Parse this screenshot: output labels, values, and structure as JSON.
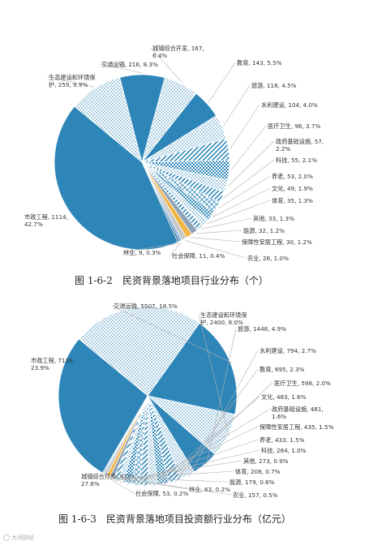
{
  "chart_data": [
    {
      "type": "pie",
      "caption": "图 1-6-2　民资背景落地项目行业分布（个）",
      "slices": [
        {
          "label": "市政工程, 1114, 42.7%",
          "value": 1114,
          "pct": 42.7,
          "color": "#2e86b8",
          "pattern": "solid"
        },
        {
          "label": "生态建设和环境保护, 259, 9.9%",
          "value": 259,
          "pct": 9.9,
          "color": "#ffffff",
          "pattern": "dots"
        },
        {
          "label": "交通运输, 216, 8.3%",
          "value": 216,
          "pct": 8.3,
          "color": "#2e86b8",
          "pattern": "solid"
        },
        {
          "label": "城镇综合开发, 167, 6.4%",
          "value": 167,
          "pct": 6.4,
          "color": "#ffffff",
          "pattern": "dots"
        },
        {
          "label": "教育, 143, 5.5%",
          "value": 143,
          "pct": 5.5,
          "color": "#2e86b8",
          "pattern": "solid"
        },
        {
          "label": "旅游, 118, 4.5%",
          "value": 118,
          "pct": 4.5,
          "color": "#ffffff",
          "pattern": "dots"
        },
        {
          "label": "水利建设, 104, 4.0%",
          "value": 104,
          "pct": 4.0,
          "color": "#ffffff",
          "pattern": "stripe"
        },
        {
          "label": "医疗卫生, 96, 3.7%",
          "value": 96,
          "pct": 3.7,
          "color": "#ffffff",
          "pattern": "check"
        },
        {
          "label": "政府基础设施, 57, 2.2%",
          "value": 57,
          "pct": 2.2,
          "color": "#ffffff",
          "pattern": "dots"
        },
        {
          "label": "科技, 55, 2.1%",
          "value": 55,
          "pct": 2.1,
          "color": "#ffffff",
          "pattern": "stripe"
        },
        {
          "label": "养老, 53, 2.0%",
          "value": 53,
          "pct": 2.0,
          "color": "#ffffff",
          "pattern": "diamond"
        },
        {
          "label": "文化, 49, 1.9%",
          "value": 49,
          "pct": 1.9,
          "color": "#ffffff",
          "pattern": "check"
        },
        {
          "label": "体育, 35, 1.3%",
          "value": 35,
          "pct": 1.3,
          "color": "#ffffff",
          "pattern": "dots"
        },
        {
          "label": "其他, 33, 1.3%",
          "value": 33,
          "pct": 1.3,
          "color": "#ffffff",
          "pattern": "stripe"
        },
        {
          "label": "能源, 32, 1.2%",
          "value": 32,
          "pct": 1.2,
          "color": "#8fa3b5",
          "pattern": "solid"
        },
        {
          "label": "保障性安居工程, 30, 1.2%",
          "value": 30,
          "pct": 1.2,
          "color": "#f2b441",
          "pattern": "solid"
        },
        {
          "label": "农业, 26, 1.0%",
          "value": 26,
          "pct": 1.0,
          "color": "#c7c7c7",
          "pattern": "solid"
        },
        {
          "label": "社会保障, 11, 0.4%",
          "value": 11,
          "pct": 0.4,
          "color": "#6fa8dc",
          "pattern": "solid"
        },
        {
          "label": "林业, 9, 0.3%",
          "value": 9,
          "pct": 0.3,
          "color": "#1f5f8b",
          "pattern": "solid"
        }
      ]
    },
    {
      "type": "pie",
      "caption": "图 1-6-3　民资背景落地项目投资额行业分布（亿元）",
      "slices": [
        {
          "label": "城镇综合开发, 8222, 27.6%",
          "value": 8222,
          "pct": 27.6,
          "color": "#2e86b8",
          "pattern": "solid"
        },
        {
          "label": "市政工程, 7126, 23.9%",
          "value": 7126,
          "pct": 23.9,
          "color": "#ffffff",
          "pattern": "dots"
        },
        {
          "label": "交通运输, 5507, 18.5%",
          "value": 5507,
          "pct": 18.5,
          "color": "#2e86b8",
          "pattern": "solid"
        },
        {
          "label": "生态建设和环境保护, 2400, 8.0%",
          "value": 2400,
          "pct": 8.0,
          "color": "#ffffff",
          "pattern": "dots"
        },
        {
          "label": "旅游, 1448, 4.9%",
          "value": 1448,
          "pct": 4.9,
          "color": "#2e86b8",
          "pattern": "solid"
        },
        {
          "label": "水利建设, 794, 2.7%",
          "value": 794,
          "pct": 2.7,
          "color": "#ffffff",
          "pattern": "dots"
        },
        {
          "label": "教育, 695, 2.3%",
          "value": 695,
          "pct": 2.3,
          "color": "#ffffff",
          "pattern": "stripe"
        },
        {
          "label": "医疗卫生, 598, 2.0%",
          "value": 598,
          "pct": 2.0,
          "color": "#ffffff",
          "pattern": "check"
        },
        {
          "label": "文化, 483, 1.6%",
          "value": 483,
          "pct": 1.6,
          "color": "#ffffff",
          "pattern": "dots"
        },
        {
          "label": "政府基础设施, 481, 1.6%",
          "value": 481,
          "pct": 1.6,
          "color": "#ffffff",
          "pattern": "stripe"
        },
        {
          "label": "保障性安居工程, 435, 1.5%",
          "value": 435,
          "pct": 1.5,
          "color": "#ffffff",
          "pattern": "diamond"
        },
        {
          "label": "养老, 433, 1.5%",
          "value": 433,
          "pct": 1.5,
          "color": "#ffffff",
          "pattern": "check"
        },
        {
          "label": "科技, 284, 1.0%",
          "value": 284,
          "pct": 1.0,
          "color": "#ffffff",
          "pattern": "dots"
        },
        {
          "label": "其他, 273, 0.9%",
          "value": 273,
          "pct": 0.9,
          "color": "#ffffff",
          "pattern": "stripe"
        },
        {
          "label": "体育, 208, 0.7%",
          "value": 208,
          "pct": 0.7,
          "color": "#8fa3b5",
          "pattern": "solid"
        },
        {
          "label": "能源, 179, 0.6%",
          "value": 179,
          "pct": 0.6,
          "color": "#f2b441",
          "pattern": "solid"
        },
        {
          "label": "农业, 157, 0.5%",
          "value": 157,
          "pct": 0.5,
          "color": "#c7c7c7",
          "pattern": "solid"
        },
        {
          "label": "林业, 63, 0.2%",
          "value": 63,
          "pct": 0.2,
          "color": "#6fa8dc",
          "pattern": "solid"
        },
        {
          "label": "社会保障, 53, 0.2%",
          "value": 53,
          "pct": 0.2,
          "color": "#1f5f8b",
          "pattern": "solid"
        }
      ]
    }
  ],
  "watermark": "大河财经"
}
